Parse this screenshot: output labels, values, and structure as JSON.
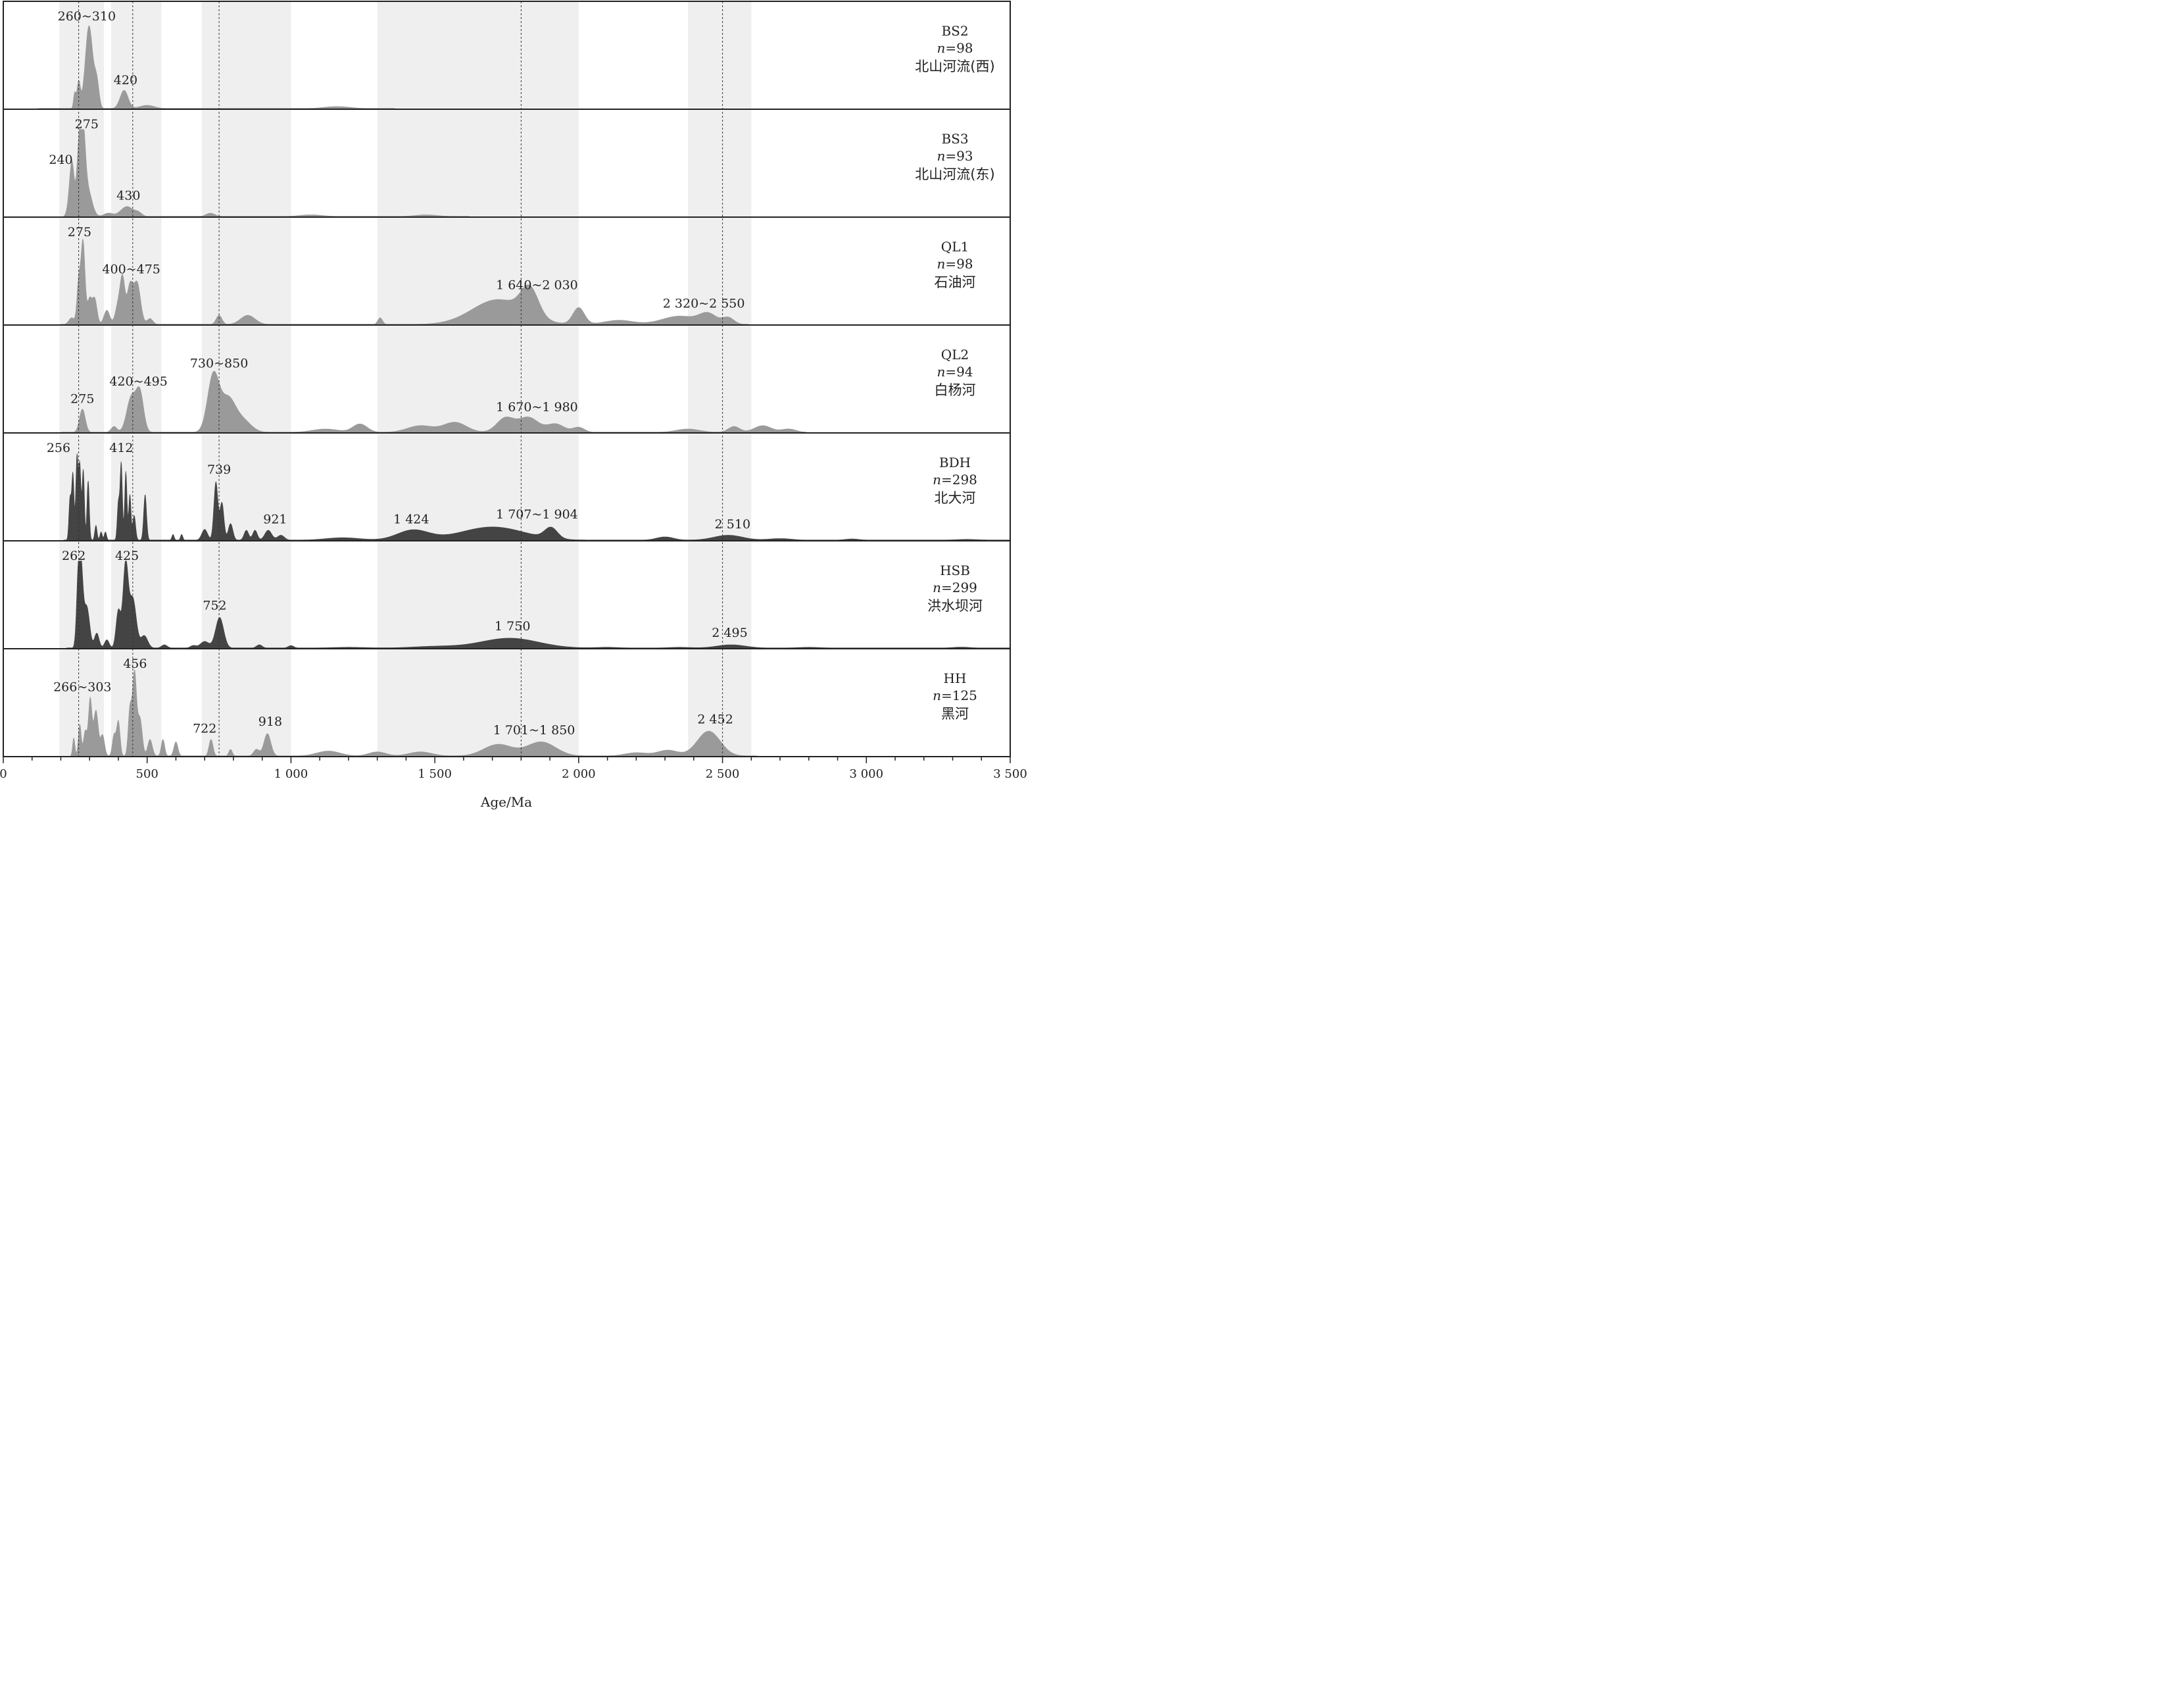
{
  "chart_data": {
    "type": "area",
    "title": "",
    "xlabel": "Age/Ma",
    "ylabel": "",
    "xlim": [
      0,
      3500
    ],
    "x_ticks": [
      0,
      500,
      1000,
      1500,
      2000,
      2500,
      3000,
      3500
    ],
    "x_tick_labels": [
      "0",
      "500",
      "1 000",
      "1 500",
      "2 000",
      "2 500",
      "3 000",
      "3 500"
    ],
    "shaded_bands": [
      [
        195,
        350
      ],
      [
        375,
        550
      ],
      [
        690,
        1000
      ],
      [
        1300,
        2000
      ],
      [
        2380,
        2600
      ]
    ],
    "reference_lines": [
      262,
      450,
      750,
      1800,
      2500
    ],
    "colors": {
      "light": "#9a9a9a",
      "dark": "#444444",
      "band": "#efefef",
      "border": "#222222"
    },
    "panels": [
      {
        "name": "BS2",
        "n_prefix": "n",
        "n_value": "=98",
        "river": "北山河流(西)",
        "fill": "light",
        "xmin": 120,
        "xmax": 1360,
        "peaks": [
          [
            248,
            0.18,
            4
          ],
          [
            262,
            0.32,
            6
          ],
          [
            298,
            1.0,
            13
          ],
          [
            325,
            0.3,
            8
          ],
          [
            420,
            0.22,
            14
          ],
          [
            500,
            0.04,
            25
          ],
          [
            1160,
            0.025,
            45
          ]
        ],
        "labels": [
          {
            "text": "260~310",
            "x": 290,
            "h": 1.0
          },
          {
            "text": "420",
            "x": 425,
            "h": 0.23
          }
        ]
      },
      {
        "name": "BS3",
        "n_prefix": "n",
        "n_value": "=93",
        "river": "北山河流(东)",
        "fill": "light",
        "xmin": 210,
        "xmax": 1620,
        "peaks": [
          [
            232,
            0.25,
            8
          ],
          [
            240,
            0.5,
            7
          ],
          [
            262,
            0.65,
            8
          ],
          [
            276,
            1.0,
            9
          ],
          [
            295,
            0.3,
            14
          ],
          [
            365,
            0.04,
            15
          ],
          [
            430,
            0.12,
            22
          ],
          [
            470,
            0.04,
            12
          ],
          [
            720,
            0.04,
            15
          ],
          [
            1070,
            0.02,
            40
          ],
          [
            1470,
            0.02,
            40
          ]
        ],
        "labels": [
          {
            "text": "240",
            "x": 200,
            "h": 0.57
          },
          {
            "text": "275",
            "x": 290,
            "h": 1.0
          },
          {
            "text": "430",
            "x": 435,
            "h": 0.14
          }
        ]
      },
      {
        "name": "QL1",
        "n_prefix": "n",
        "n_value": "=98",
        "river": "石油河",
        "fill": "light",
        "xmin": 200,
        "xmax": 2590,
        "peaks": [
          [
            238,
            0.08,
            10
          ],
          [
            262,
            0.5,
            6
          ],
          [
            277,
            1.0,
            7
          ],
          [
            300,
            0.3,
            8
          ],
          [
            318,
            0.3,
            8
          ],
          [
            360,
            0.17,
            10
          ],
          [
            400,
            0.25,
            10
          ],
          [
            415,
            0.5,
            8
          ],
          [
            440,
            0.45,
            10
          ],
          [
            465,
            0.5,
            12
          ],
          [
            510,
            0.07,
            10
          ],
          [
            750,
            0.11,
            10
          ],
          [
            850,
            0.11,
            25
          ],
          [
            1310,
            0.08,
            8
          ],
          [
            1720,
            0.3,
            90
          ],
          [
            1830,
            0.33,
            30
          ],
          [
            2000,
            0.2,
            20
          ],
          [
            2140,
            0.05,
            50
          ],
          [
            2350,
            0.1,
            60
          ],
          [
            2450,
            0.12,
            30
          ],
          [
            2520,
            0.08,
            20
          ]
        ],
        "labels": [
          {
            "text": "275",
            "x": 265,
            "h": 1.0
          },
          {
            "text": "400~475",
            "x": 445,
            "h": 0.55
          },
          {
            "text": "1 640~2 030",
            "x": 1855,
            "h": 0.36
          },
          {
            "text": "2 320~2 550",
            "x": 2435,
            "h": 0.14
          }
        ]
      },
      {
        "name": "QL2",
        "n_prefix": "n",
        "n_value": "=94",
        "river": "白杨河",
        "fill": "light",
        "xmin": 200,
        "xmax": 2790,
        "peaks": [
          [
            275,
            0.28,
            10
          ],
          [
            385,
            0.07,
            10
          ],
          [
            445,
            0.42,
            16
          ],
          [
            475,
            0.46,
            13
          ],
          [
            730,
            0.68,
            20
          ],
          [
            780,
            0.38,
            25
          ],
          [
            830,
            0.15,
            30
          ],
          [
            1120,
            0.04,
            45
          ],
          [
            1240,
            0.1,
            25
          ],
          [
            1450,
            0.08,
            45
          ],
          [
            1570,
            0.12,
            40
          ],
          [
            1745,
            0.17,
            30
          ],
          [
            1825,
            0.18,
            35
          ],
          [
            1920,
            0.1,
            30
          ],
          [
            2000,
            0.06,
            20
          ],
          [
            2380,
            0.04,
            40
          ],
          [
            2540,
            0.07,
            20
          ],
          [
            2640,
            0.08,
            30
          ],
          [
            2730,
            0.04,
            25
          ]
        ],
        "labels": [
          {
            "text": "275",
            "x": 275,
            "h": 0.29
          },
          {
            "text": "420~495",
            "x": 470,
            "h": 0.5
          },
          {
            "text": "730~850",
            "x": 750,
            "h": 0.72
          },
          {
            "text": "1 670~1 980",
            "x": 1855,
            "h": 0.19
          }
        ]
      },
      {
        "name": "BDH",
        "n_prefix": "n",
        "n_value": "=298",
        "river": "北大河",
        "fill": "dark",
        "xmin": 210,
        "xmax": 3500,
        "peaks": [
          [
            232,
            0.5,
            4
          ],
          [
            242,
            0.8,
            4
          ],
          [
            256,
            1.0,
            4
          ],
          [
            266,
            0.9,
            4
          ],
          [
            278,
            0.85,
            4
          ],
          [
            295,
            0.72,
            4
          ],
          [
            322,
            0.18,
            4
          ],
          [
            340,
            0.1,
            4
          ],
          [
            355,
            0.1,
            4
          ],
          [
            400,
            0.45,
            4
          ],
          [
            410,
            0.93,
            4
          ],
          [
            426,
            0.83,
            4
          ],
          [
            440,
            0.55,
            4
          ],
          [
            455,
            0.3,
            5
          ],
          [
            493,
            0.55,
            5
          ],
          [
            590,
            0.07,
            4
          ],
          [
            620,
            0.07,
            4
          ],
          [
            700,
            0.13,
            10
          ],
          [
            739,
            0.7,
            7
          ],
          [
            760,
            0.45,
            7
          ],
          [
            790,
            0.2,
            8
          ],
          [
            845,
            0.12,
            8
          ],
          [
            875,
            0.12,
            8
          ],
          [
            921,
            0.12,
            12
          ],
          [
            965,
            0.06,
            12
          ],
          [
            1180,
            0.03,
            60
          ],
          [
            1424,
            0.12,
            55
          ],
          [
            1700,
            0.16,
            110
          ],
          [
            1904,
            0.13,
            22
          ],
          [
            2300,
            0.04,
            30
          ],
          [
            2520,
            0.06,
            50
          ],
          [
            2700,
            0.02,
            40
          ],
          [
            2950,
            0.015,
            25
          ],
          [
            3350,
            0.01,
            40
          ]
        ],
        "labels": [
          {
            "text": "256",
            "x": 192,
            "h": 1.0
          },
          {
            "text": "412",
            "x": 410,
            "h": 1.0
          },
          {
            "text": "739",
            "x": 750,
            "h": 0.74
          },
          {
            "text": "921",
            "x": 945,
            "h": 0.14
          },
          {
            "text": "1 424",
            "x": 1418,
            "h": 0.14
          },
          {
            "text": "1 707~1 904",
            "x": 1855,
            "h": 0.2
          },
          {
            "text": "2 510",
            "x": 2535,
            "h": 0.08
          }
        ]
      },
      {
        "name": "HSB",
        "n_prefix": "n",
        "n_value": "=299",
        "river": "洪水坝河",
        "fill": "dark",
        "xmin": 220,
        "xmax": 3500,
        "peaks": [
          [
            260,
            0.7,
            6
          ],
          [
            270,
            0.92,
            7
          ],
          [
            290,
            0.5,
            10
          ],
          [
            325,
            0.18,
            8
          ],
          [
            360,
            0.1,
            8
          ],
          [
            400,
            0.45,
            8
          ],
          [
            425,
            1.0,
            9
          ],
          [
            450,
            0.6,
            12
          ],
          [
            490,
            0.15,
            12
          ],
          [
            560,
            0.04,
            10
          ],
          [
            660,
            0.03,
            10
          ],
          [
            752,
            0.37,
            14
          ],
          [
            700,
            0.08,
            15
          ],
          [
            890,
            0.04,
            10
          ],
          [
            1000,
            0.03,
            10
          ],
          [
            1200,
            0.01,
            60
          ],
          [
            1500,
            0.02,
            80
          ],
          [
            1760,
            0.12,
            100
          ],
          [
            2100,
            0.01,
            40
          ],
          [
            2350,
            0.01,
            40
          ],
          [
            2530,
            0.04,
            50
          ],
          [
            2800,
            0.01,
            40
          ],
          [
            3330,
            0.012,
            30
          ]
        ],
        "labels": [
          {
            "text": "262",
            "x": 245,
            "h": 1.0
          },
          {
            "text": "425",
            "x": 430,
            "h": 1.0
          },
          {
            "text": "752",
            "x": 735,
            "h": 0.4
          },
          {
            "text": "1 750",
            "x": 1770,
            "h": 0.15
          },
          {
            "text": "2 495",
            "x": 2525,
            "h": 0.07
          }
        ]
      },
      {
        "name": "HH",
        "n_prefix": "n",
        "n_value": "=125",
        "river": "黑河",
        "fill": "light",
        "xmin": 235,
        "xmax": 2620,
        "peaks": [
          [
            245,
            0.22,
            4
          ],
          [
            266,
            0.38,
            5
          ],
          [
            285,
            0.3,
            6
          ],
          [
            302,
            0.68,
            6
          ],
          [
            322,
            0.55,
            8
          ],
          [
            345,
            0.25,
            7
          ],
          [
            385,
            0.25,
            6
          ],
          [
            400,
            0.42,
            6
          ],
          [
            440,
            0.55,
            6
          ],
          [
            456,
            1.0,
            7
          ],
          [
            475,
            0.45,
            8
          ],
          [
            510,
            0.2,
            8
          ],
          [
            555,
            0.2,
            6
          ],
          [
            600,
            0.17,
            7
          ],
          [
            722,
            0.2,
            7
          ],
          [
            790,
            0.08,
            6
          ],
          [
            918,
            0.27,
            12
          ],
          [
            880,
            0.08,
            10
          ],
          [
            1130,
            0.06,
            40
          ],
          [
            1300,
            0.05,
            30
          ],
          [
            1450,
            0.05,
            40
          ],
          [
            1720,
            0.14,
            50
          ],
          [
            1870,
            0.17,
            50
          ],
          [
            2200,
            0.04,
            40
          ],
          [
            2310,
            0.07,
            35
          ],
          [
            2452,
            0.3,
            40
          ]
        ],
        "labels": [
          {
            "text": "266~303",
            "x": 275,
            "h": 0.72
          },
          {
            "text": "456",
            "x": 458,
            "h": 1.0
          },
          {
            "text": "722",
            "x": 700,
            "h": 0.22
          },
          {
            "text": "918",
            "x": 928,
            "h": 0.3
          },
          {
            "text": "1 701~1 850",
            "x": 1845,
            "h": 0.2
          },
          {
            "text": "2 452",
            "x": 2475,
            "h": 0.33
          }
        ]
      }
    ]
  }
}
